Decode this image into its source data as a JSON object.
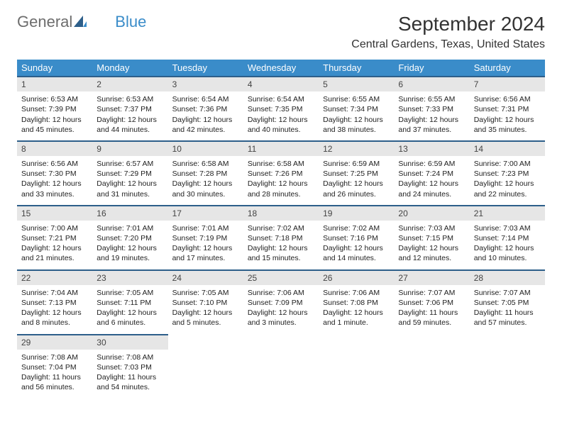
{
  "logo": {
    "text1": "General",
    "text2": "Blue"
  },
  "title": "September 2024",
  "location": "Central Gardens, Texas, United States",
  "colors": {
    "header_bg": "#3a8cc9",
    "header_border": "#2d5f8a",
    "daynum_bg": "#e6e6e6",
    "text": "#222222",
    "logo_gray": "#6d6d6d",
    "logo_blue": "#3a8cc9",
    "page_bg": "#ffffff"
  },
  "day_labels": [
    "Sunday",
    "Monday",
    "Tuesday",
    "Wednesday",
    "Thursday",
    "Friday",
    "Saturday"
  ],
  "weeks": [
    [
      {
        "n": "1",
        "sr": "6:53 AM",
        "ss": "7:39 PM",
        "dl": "12 hours and 45 minutes."
      },
      {
        "n": "2",
        "sr": "6:53 AM",
        "ss": "7:37 PM",
        "dl": "12 hours and 44 minutes."
      },
      {
        "n": "3",
        "sr": "6:54 AM",
        "ss": "7:36 PM",
        "dl": "12 hours and 42 minutes."
      },
      {
        "n": "4",
        "sr": "6:54 AM",
        "ss": "7:35 PM",
        "dl": "12 hours and 40 minutes."
      },
      {
        "n": "5",
        "sr": "6:55 AM",
        "ss": "7:34 PM",
        "dl": "12 hours and 38 minutes."
      },
      {
        "n": "6",
        "sr": "6:55 AM",
        "ss": "7:33 PM",
        "dl": "12 hours and 37 minutes."
      },
      {
        "n": "7",
        "sr": "6:56 AM",
        "ss": "7:31 PM",
        "dl": "12 hours and 35 minutes."
      }
    ],
    [
      {
        "n": "8",
        "sr": "6:56 AM",
        "ss": "7:30 PM",
        "dl": "12 hours and 33 minutes."
      },
      {
        "n": "9",
        "sr": "6:57 AM",
        "ss": "7:29 PM",
        "dl": "12 hours and 31 minutes."
      },
      {
        "n": "10",
        "sr": "6:58 AM",
        "ss": "7:28 PM",
        "dl": "12 hours and 30 minutes."
      },
      {
        "n": "11",
        "sr": "6:58 AM",
        "ss": "7:26 PM",
        "dl": "12 hours and 28 minutes."
      },
      {
        "n": "12",
        "sr": "6:59 AM",
        "ss": "7:25 PM",
        "dl": "12 hours and 26 minutes."
      },
      {
        "n": "13",
        "sr": "6:59 AM",
        "ss": "7:24 PM",
        "dl": "12 hours and 24 minutes."
      },
      {
        "n": "14",
        "sr": "7:00 AM",
        "ss": "7:23 PM",
        "dl": "12 hours and 22 minutes."
      }
    ],
    [
      {
        "n": "15",
        "sr": "7:00 AM",
        "ss": "7:21 PM",
        "dl": "12 hours and 21 minutes."
      },
      {
        "n": "16",
        "sr": "7:01 AM",
        "ss": "7:20 PM",
        "dl": "12 hours and 19 minutes."
      },
      {
        "n": "17",
        "sr": "7:01 AM",
        "ss": "7:19 PM",
        "dl": "12 hours and 17 minutes."
      },
      {
        "n": "18",
        "sr": "7:02 AM",
        "ss": "7:18 PM",
        "dl": "12 hours and 15 minutes."
      },
      {
        "n": "19",
        "sr": "7:02 AM",
        "ss": "7:16 PM",
        "dl": "12 hours and 14 minutes."
      },
      {
        "n": "20",
        "sr": "7:03 AM",
        "ss": "7:15 PM",
        "dl": "12 hours and 12 minutes."
      },
      {
        "n": "21",
        "sr": "7:03 AM",
        "ss": "7:14 PM",
        "dl": "12 hours and 10 minutes."
      }
    ],
    [
      {
        "n": "22",
        "sr": "7:04 AM",
        "ss": "7:13 PM",
        "dl": "12 hours and 8 minutes."
      },
      {
        "n": "23",
        "sr": "7:05 AM",
        "ss": "7:11 PM",
        "dl": "12 hours and 6 minutes."
      },
      {
        "n": "24",
        "sr": "7:05 AM",
        "ss": "7:10 PM",
        "dl": "12 hours and 5 minutes."
      },
      {
        "n": "25",
        "sr": "7:06 AM",
        "ss": "7:09 PM",
        "dl": "12 hours and 3 minutes."
      },
      {
        "n": "26",
        "sr": "7:06 AM",
        "ss": "7:08 PM",
        "dl": "12 hours and 1 minute."
      },
      {
        "n": "27",
        "sr": "7:07 AM",
        "ss": "7:06 PM",
        "dl": "11 hours and 59 minutes."
      },
      {
        "n": "28",
        "sr": "7:07 AM",
        "ss": "7:05 PM",
        "dl": "11 hours and 57 minutes."
      }
    ],
    [
      {
        "n": "29",
        "sr": "7:08 AM",
        "ss": "7:04 PM",
        "dl": "11 hours and 56 minutes."
      },
      {
        "n": "30",
        "sr": "7:08 AM",
        "ss": "7:03 PM",
        "dl": "11 hours and 54 minutes."
      },
      null,
      null,
      null,
      null,
      null
    ]
  ],
  "labels": {
    "sunrise": "Sunrise: ",
    "sunset": "Sunset: ",
    "daylight": "Daylight: "
  }
}
